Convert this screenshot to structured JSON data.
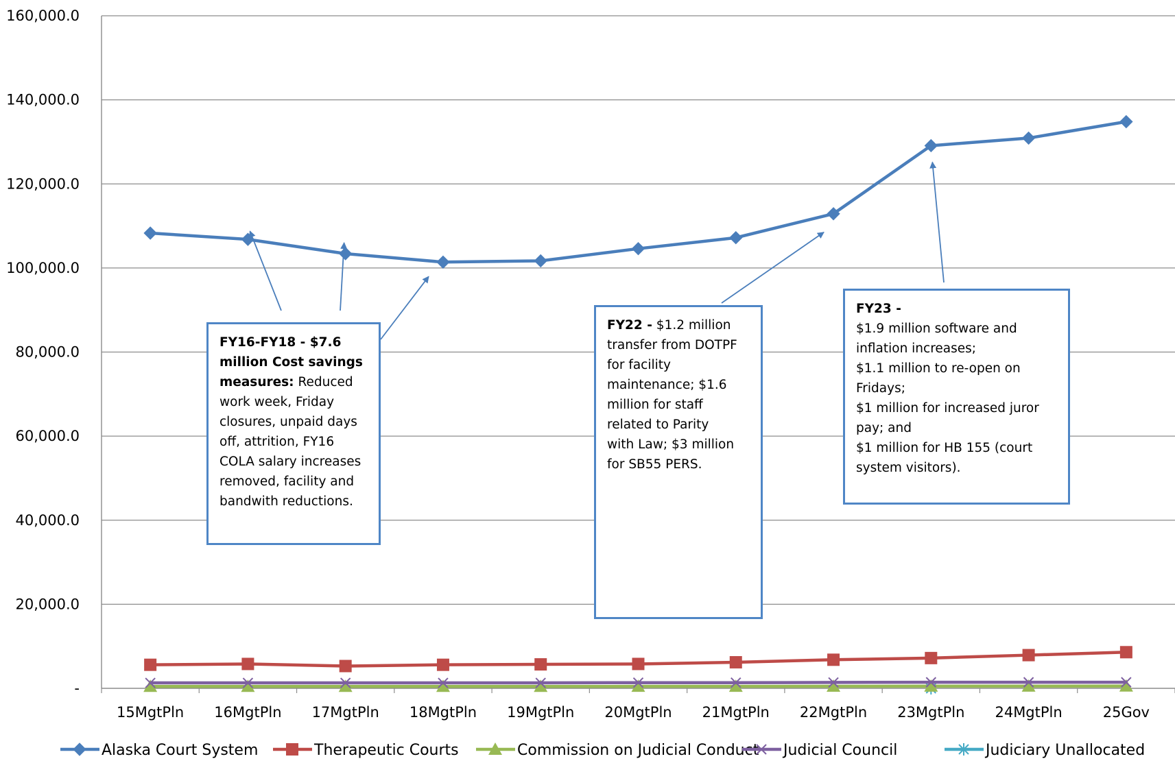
{
  "chart_data": {
    "type": "line",
    "categories": [
      "15MgtPln",
      "16MgtPln",
      "17MgtPln",
      "18MgtPln",
      "19MgtPln",
      "20MgtPln",
      "21MgtPln",
      "22MgtPln",
      "23MgtPln",
      "24MgtPln",
      "25Gov"
    ],
    "ylim": [
      0,
      160000
    ],
    "y_ticks": [
      "-",
      "20,000.0",
      "40,000.0",
      "60,000.0",
      "80,000.0",
      "100,000.0",
      "120,000.0",
      "140,000.0",
      "160,000.0"
    ],
    "grid": true,
    "legend_position": "bottom",
    "series": [
      {
        "name": "Alaska Court System",
        "color": "#4a7ebb",
        "marker": "diamond",
        "values": [
          108300,
          106800,
          103400,
          101400,
          101700,
          104600,
          107200,
          112900,
          129100,
          130900,
          134800
        ]
      },
      {
        "name": "Therapeutic Courts",
        "color": "#be4b48",
        "marker": "square",
        "values": [
          5600,
          5800,
          5300,
          5600,
          5700,
          5800,
          6200,
          6800,
          7200,
          7900,
          8600
        ]
      },
      {
        "name": "Commission on Judicial Conduct",
        "color": "#98b954",
        "marker": "triangle",
        "values": [
          450,
          450,
          450,
          450,
          450,
          460,
          470,
          480,
          500,
          510,
          520
        ]
      },
      {
        "name": "Judicial Council",
        "color": "#7d60a0",
        "marker": "x",
        "values": [
          1300,
          1300,
          1300,
          1300,
          1300,
          1350,
          1350,
          1400,
          1450,
          1450,
          1450
        ]
      },
      {
        "name": "Judiciary Unallocated",
        "color": "#46aac5",
        "marker": "star",
        "values": [
          null,
          null,
          null,
          null,
          null,
          null,
          null,
          null,
          0,
          null,
          null
        ]
      }
    ],
    "annotations": [
      {
        "id": "fy16",
        "bold": "FY16-FY18 - $7.6 million Cost savings measures:",
        "lines": [
          "FY16-FY18 - $7.6",
          "million Cost savings",
          "measures:",
          "Reduced",
          "work week, Friday",
          "closures, unpaid days",
          "off, attrition, FY16",
          "COLA salary increases",
          "removed, facility and",
          "bandwith reductions."
        ]
      },
      {
        "id": "fy22",
        "bold": "FY22 -",
        "lines": [
          "FY22 -",
          "$1.2 million",
          "transfer from DOTPF",
          "for facility",
          "maintenance; $1.6",
          "million for staff",
          "related to Parity",
          "with Law;  $3 million",
          "for SB55 PERS."
        ]
      },
      {
        "id": "fy23",
        "bold": "FY23 -",
        "lines": [
          "FY23 -",
          "$1.9 million software and",
          "inflation increases;",
          "$1.1 million to re-open on",
          "Fridays;",
          "$1 million for increased juror",
          "pay; and",
          "$1 million for HB 155 (court",
          "system visitors)."
        ]
      }
    ]
  }
}
